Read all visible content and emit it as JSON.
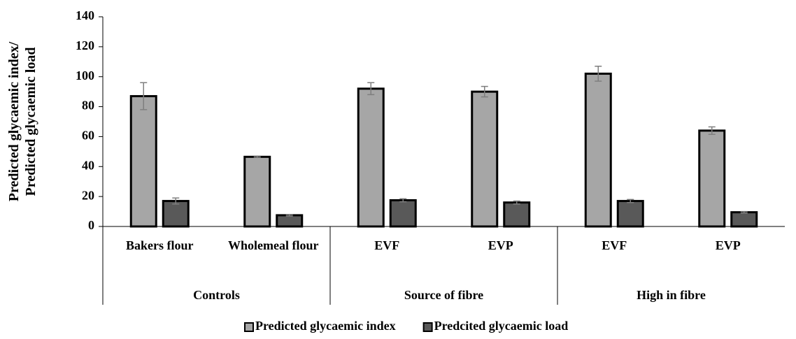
{
  "chart_data": {
    "type": "bar",
    "y_label": "Predicted glycaemic index/ Predicted glycaemic load",
    "groups": [
      {
        "name": "Controls",
        "categories": [
          "Bakers flour",
          "Wholemeal flour"
        ]
      },
      {
        "name": "Source of fibre",
        "categories": [
          "EVF",
          "EVP"
        ]
      },
      {
        "name": "High in fibre",
        "categories": [
          "EVF",
          "EVP"
        ]
      }
    ],
    "series": [
      {
        "name": "Predicted glycaemic index",
        "color": "#a6a6a6",
        "values": [
          87,
          46.5,
          92,
          90,
          102,
          64
        ],
        "errors": [
          9,
          0.5,
          4,
          3.5,
          5,
          2.5
        ]
      },
      {
        "name": "Predcited glycaemic load",
        "color": "#595959",
        "values": [
          17,
          7.5,
          17.5,
          16,
          17,
          9.5
        ],
        "errors": [
          2,
          0.5,
          1,
          1,
          1,
          0.5
        ]
      }
    ],
    "ylim": [
      0,
      140
    ],
    "yticks": [
      0,
      20,
      40,
      60,
      80,
      100,
      120,
      140
    ],
    "legend": "bottom"
  }
}
